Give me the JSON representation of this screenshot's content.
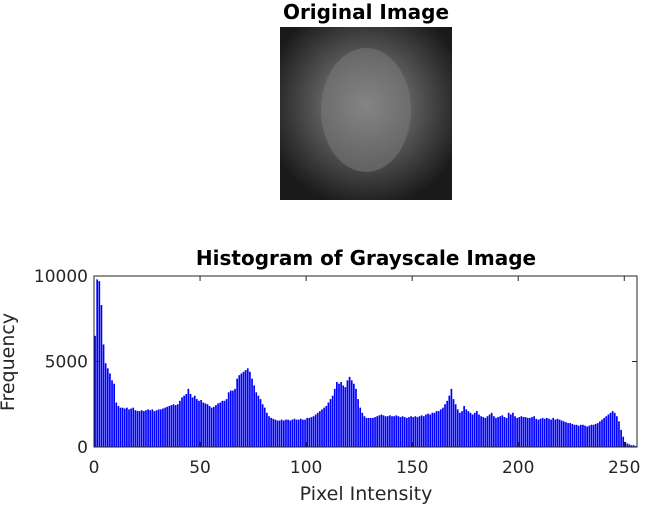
{
  "chart_data": [
    {
      "type": "image",
      "title": "Original Image"
    },
    {
      "type": "histogram",
      "title": "Histogram of Grayscale Image",
      "xlabel": "Pixel Intensity",
      "ylabel": "Frequency",
      "color": "#0000ff",
      "bins": [
        0,
        1,
        2,
        3,
        4,
        5,
        6,
        7,
        8,
        9,
        10,
        11,
        12,
        13,
        14,
        15,
        16,
        17,
        18,
        19,
        20,
        21,
        22,
        23,
        24,
        25,
        26,
        27,
        28,
        29,
        30,
        31,
        32,
        33,
        34,
        35,
        36,
        37,
        38,
        39,
        40,
        41,
        42,
        43,
        44,
        45,
        46,
        47,
        48,
        49,
        50,
        51,
        52,
        53,
        54,
        55,
        56,
        57,
        58,
        59,
        60,
        61,
        62,
        63,
        64,
        65,
        66,
        67,
        68,
        69,
        70,
        71,
        72,
        73,
        74,
        75,
        76,
        77,
        78,
        79,
        80,
        81,
        82,
        83,
        84,
        85,
        86,
        87,
        88,
        89,
        90,
        91,
        92,
        93,
        94,
        95,
        96,
        97,
        98,
        99,
        100,
        101,
        102,
        103,
        104,
        105,
        106,
        107,
        108,
        109,
        110,
        111,
        112,
        113,
        114,
        115,
        116,
        117,
        118,
        119,
        120,
        121,
        122,
        123,
        124,
        125,
        126,
        127,
        128,
        129,
        130,
        131,
        132,
        133,
        134,
        135,
        136,
        137,
        138,
        139,
        140,
        141,
        142,
        143,
        144,
        145,
        146,
        147,
        148,
        149,
        150,
        151,
        152,
        153,
        154,
        155,
        156,
        157,
        158,
        159,
        160,
        161,
        162,
        163,
        164,
        165,
        166,
        167,
        168,
        169,
        170,
        171,
        172,
        173,
        174,
        175,
        176,
        177,
        178,
        179,
        180,
        181,
        182,
        183,
        184,
        185,
        186,
        187,
        188,
        189,
        190,
        191,
        192,
        193,
        194,
        195,
        196,
        197,
        198,
        199,
        200,
        201,
        202,
        203,
        204,
        205,
        206,
        207,
        208,
        209,
        210,
        211,
        212,
        213,
        214,
        215,
        216,
        217,
        218,
        219,
        220,
        221,
        222,
        223,
        224,
        225,
        226,
        227,
        228,
        229,
        230,
        231,
        232,
        233,
        234,
        235,
        236,
        237,
        238,
        239,
        240,
        241,
        242,
        243,
        244,
        245,
        246,
        247,
        248,
        249,
        250,
        251,
        252,
        253,
        254,
        255,
        256
      ],
      "values": [
        6500,
        9800,
        9700,
        8300,
        6000,
        4900,
        4600,
        4300,
        3900,
        3700,
        2600,
        2400,
        2300,
        2300,
        2250,
        2300,
        2200,
        2250,
        2300,
        2150,
        2100,
        2100,
        2150,
        2100,
        2150,
        2200,
        2150,
        2200,
        2100,
        2150,
        2200,
        2200,
        2250,
        2300,
        2350,
        2400,
        2450,
        2500,
        2450,
        2500,
        2700,
        2900,
        3000,
        3100,
        3400,
        3100,
        2900,
        3000,
        2800,
        2700,
        2750,
        2600,
        2550,
        2500,
        2400,
        2300,
        2350,
        2450,
        2550,
        2600,
        2700,
        2700,
        2800,
        3200,
        3300,
        3300,
        3400,
        4000,
        4200,
        4300,
        4400,
        4500,
        4600,
        4400,
        4000,
        3600,
        3200,
        3000,
        2800,
        2500,
        2300,
        2000,
        1800,
        1700,
        1650,
        1600,
        1550,
        1550,
        1600,
        1550,
        1600,
        1600,
        1550,
        1600,
        1650,
        1600,
        1600,
        1650,
        1600,
        1600,
        1700,
        1700,
        1750,
        1800,
        1900,
        2000,
        2100,
        2200,
        2300,
        2400,
        2600,
        2800,
        3000,
        3400,
        3800,
        3700,
        3800,
        3600,
        3500,
        3900,
        4100,
        3900,
        3700,
        3400,
        2800,
        2300,
        2000,
        1800,
        1700,
        1700,
        1700,
        1700,
        1750,
        1800,
        1850,
        1900,
        1850,
        1800,
        1800,
        1850,
        1800,
        1800,
        1850,
        1800,
        1750,
        1800,
        1750,
        1700,
        1750,
        1800,
        1750,
        1800,
        1750,
        1800,
        1850,
        1800,
        1900,
        1950,
        1900,
        2000,
        2000,
        2100,
        2100,
        2200,
        2300,
        2500,
        2700,
        3000,
        3400,
        2800,
        2500,
        2200,
        2000,
        2100,
        2400,
        2200,
        2100,
        2000,
        1900,
        2000,
        2100,
        1900,
        1800,
        1750,
        1700,
        1800,
        1900,
        2000,
        1800,
        1700,
        1750,
        1800,
        1850,
        1750,
        1700,
        2000,
        1900,
        2000,
        1800,
        1700,
        1750,
        1800,
        1750,
        1750,
        1700,
        1700,
        1750,
        1800,
        1650,
        1600,
        1650,
        1700,
        1650,
        1700,
        1650,
        1600,
        1700,
        1600,
        1650,
        1600,
        1550,
        1500,
        1450,
        1400,
        1400,
        1350,
        1300,
        1300,
        1250,
        1300,
        1300,
        1250,
        1200,
        1250,
        1300,
        1300,
        1350,
        1400,
        1500,
        1600,
        1700,
        1800,
        1900,
        2000,
        2100,
        2000,
        1800,
        1500,
        1000,
        600,
        300,
        200,
        150,
        100,
        100,
        50
      ],
      "xlim": [
        0,
        256
      ],
      "xticks": [
        0,
        50,
        100,
        150,
        200,
        250
      ],
      "ylim": [
        0,
        10000
      ],
      "yticks": [
        0,
        5000,
        10000
      ]
    }
  ]
}
